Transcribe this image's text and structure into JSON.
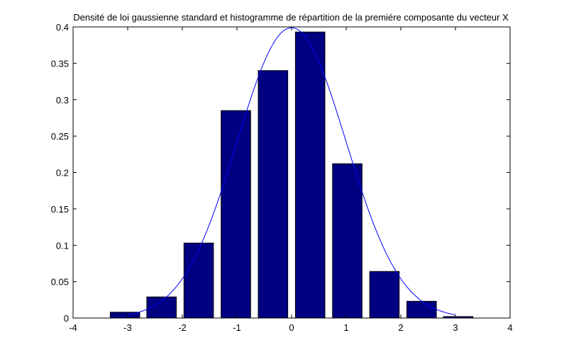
{
  "chart_data": {
    "type": "bar",
    "title": "Densité de loi gaussienne standard et histogramme de répartition de la premiére composante du vecteur X",
    "xlabel": "",
    "ylabel": "",
    "xlim": [
      -4,
      4
    ],
    "ylim": [
      0,
      0.4
    ],
    "xticks": [
      "-4",
      "-3",
      "-2",
      "-1",
      "0",
      "1",
      "2",
      "3",
      "4"
    ],
    "yticks": [
      "0",
      "0.05",
      "0.1",
      "0.15",
      "0.2",
      "0.25",
      "0.3",
      "0.35",
      "0.4"
    ],
    "grid": false,
    "legend": "none",
    "bar_color": "#000080",
    "line_color": "#0000ff",
    "bar_width": 0.54,
    "bars": [
      {
        "x": -3.05,
        "value": 0.008
      },
      {
        "x": -2.38,
        "value": 0.029
      },
      {
        "x": -1.7,
        "value": 0.103
      },
      {
        "x": -1.02,
        "value": 0.285
      },
      {
        "x": -0.34,
        "value": 0.34
      },
      {
        "x": 0.34,
        "value": 0.393
      },
      {
        "x": 1.02,
        "value": 0.212
      },
      {
        "x": 1.7,
        "value": 0.064
      },
      {
        "x": 2.38,
        "value": 0.023
      },
      {
        "x": 3.05,
        "value": 0.002
      }
    ],
    "density_curve": {
      "name": "gaussian pdf",
      "x_range": [
        -3,
        3
      ]
    }
  }
}
